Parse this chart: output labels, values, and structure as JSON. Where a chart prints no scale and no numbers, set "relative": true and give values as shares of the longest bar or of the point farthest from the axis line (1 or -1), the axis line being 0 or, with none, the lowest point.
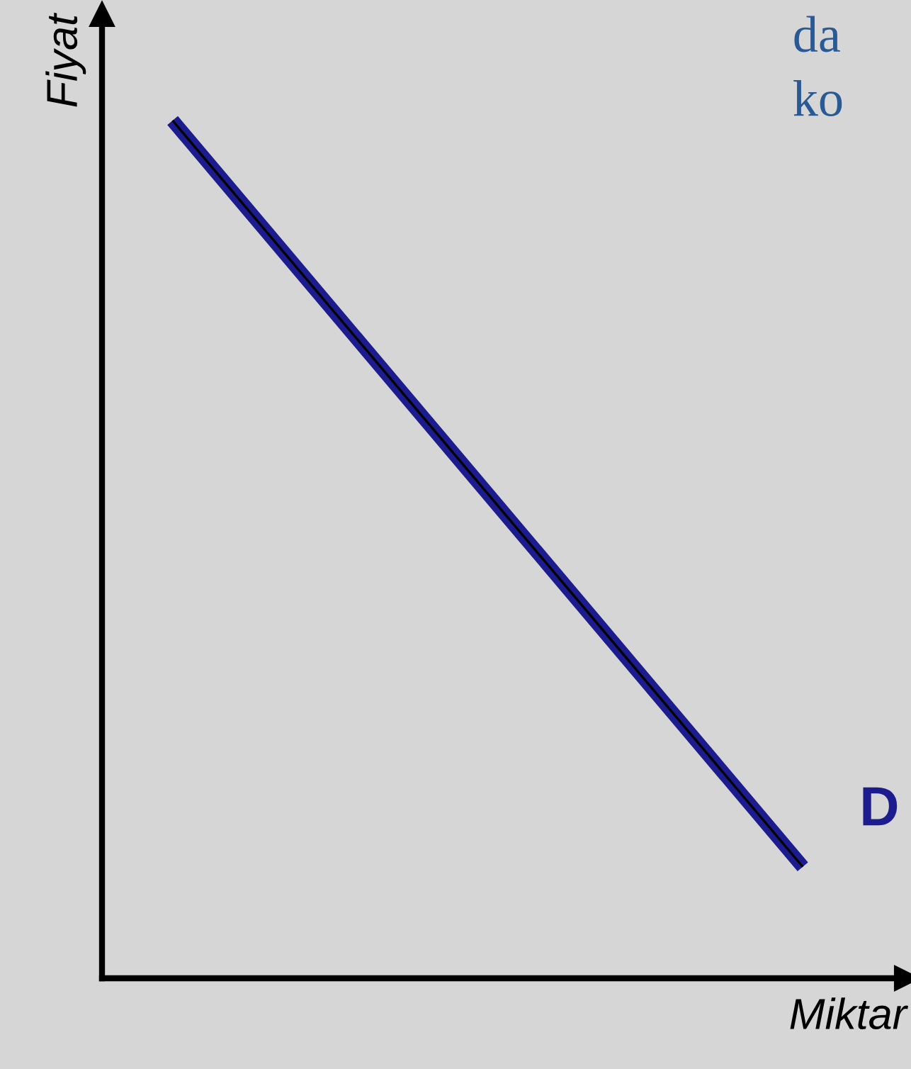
{
  "chart_data": {
    "type": "line",
    "relative": true,
    "xlabel": "Miktar",
    "ylabel": "Fiyat",
    "categories": [
      null,
      null
    ],
    "series": [
      {
        "color": "#1c1c8f",
        "values": [
          1,
          0.13
        ]
      }
    ],
    "annotations": [
      "D",
      "da",
      "ko"
    ],
    "grid": false,
    "legend": false,
    "marker": "none",
    "line_style": "solid"
  }
}
